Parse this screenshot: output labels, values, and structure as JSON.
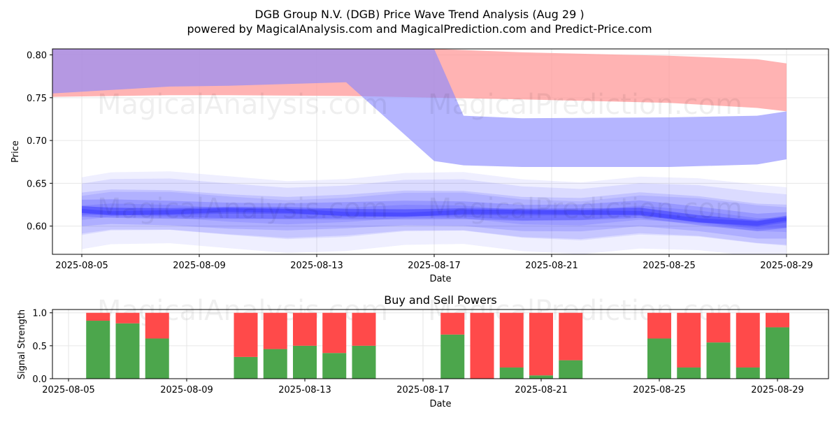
{
  "title_line1": "DGB Group N.V. (DGB) Price Wave Trend Analysis (Aug 29 )",
  "title_line2": "powered by MagicalAnalysis.com and MagicalPrediction.com and Predict-Price.com",
  "watermarks": [
    "MagicalAnalysis.com",
    "MagicalPrediction.com"
  ],
  "colors": {
    "buy": "#4ca64c",
    "sell": "#ff4a4a",
    "upper_band": "#ff9999",
    "lower_band": "#8888ff",
    "wave": "#3333ff",
    "purple_overlap": "#b366a6"
  },
  "chart_data": [
    {
      "type": "area",
      "xlabel": "Date",
      "ylabel": "Price",
      "ylim": [
        0.567,
        0.807
      ],
      "x_tick_labels": [
        "2025-08-05",
        "2025-08-09",
        "2025-08-13",
        "2025-08-17",
        "2025-08-21",
        "2025-08-25",
        "2025-08-29"
      ],
      "y_tick_labels": [
        "0.60",
        "0.65",
        "0.70",
        "0.75",
        "0.80"
      ],
      "grid": true,
      "series": [
        {
          "band": "upper",
          "x": [
            "2025-08-04",
            "2025-08-08",
            "2025-08-10",
            "2025-08-14",
            "2025-08-17",
            "2025-08-20",
            "2025-08-25",
            "2025-08-28",
            "2025-08-29"
          ],
          "upper": [
            0.807,
            0.807,
            0.807,
            0.807,
            0.807,
            0.803,
            0.799,
            0.795,
            0.79
          ],
          "lower": [
            0.751,
            0.753,
            0.753,
            0.752,
            0.75,
            0.748,
            0.744,
            0.738,
            0.734
          ]
        },
        {
          "band": "lower",
          "x": [
            "2025-08-04",
            "2025-08-08",
            "2025-08-10",
            "2025-08-14",
            "2025-08-17",
            "2025-08-18",
            "2025-08-20",
            "2025-08-25",
            "2025-08-28",
            "2025-08-29"
          ],
          "upper": [
            0.807,
            0.807,
            0.807,
            0.807,
            0.807,
            0.729,
            0.726,
            0.727,
            0.729,
            0.734
          ],
          "lower": [
            0.755,
            0.763,
            0.764,
            0.768,
            0.676,
            0.671,
            0.669,
            0.669,
            0.672,
            0.678
          ]
        },
        {
          "band": "wave_center",
          "x": [
            "2025-08-05",
            "2025-08-06",
            "2025-08-08",
            "2025-08-10",
            "2025-08-12",
            "2025-08-14",
            "2025-08-16",
            "2025-08-18",
            "2025-08-20",
            "2025-08-22",
            "2025-08-24",
            "2025-08-26",
            "2025-08-28",
            "2025-08-29"
          ],
          "values": [
            0.615,
            0.617,
            0.62,
            0.619,
            0.614,
            0.612,
            0.616,
            0.62,
            0.616,
            0.612,
            0.614,
            0.61,
            0.606,
            0.607
          ]
        }
      ]
    },
    {
      "type": "bar",
      "title": "Buy and Sell Powers",
      "xlabel": "Date",
      "ylabel": "Signal Strength",
      "ylim": [
        0,
        1.05
      ],
      "x_tick_labels": [
        "2025-08-05",
        "2025-08-09",
        "2025-08-13",
        "2025-08-17",
        "2025-08-21",
        "2025-08-25",
        "2025-08-29"
      ],
      "y_tick_labels": [
        "0.0",
        "0.5",
        "1.0"
      ],
      "categories": [
        "2025-08-06",
        "2025-08-07",
        "2025-08-08",
        "2025-08-11",
        "2025-08-12",
        "2025-08-13",
        "2025-08-14",
        "2025-08-15",
        "2025-08-18",
        "2025-08-19",
        "2025-08-20",
        "2025-08-21",
        "2025-08-22",
        "2025-08-25",
        "2025-08-26",
        "2025-08-27",
        "2025-08-28",
        "2025-08-29"
      ],
      "series": [
        {
          "values": [
            0.88,
            0.84,
            0.61,
            0.33,
            0.45,
            0.5,
            0.39,
            0.5,
            0.67,
            0.0,
            0.17,
            0.05,
            0.28,
            0.61,
            0.17,
            0.55,
            0.17,
            0.78
          ]
        },
        {
          "values": [
            0.12,
            0.16,
            0.39,
            0.67,
            0.55,
            0.5,
            0.61,
            0.5,
            0.33,
            1.0,
            0.83,
            0.95,
            0.72,
            0.39,
            0.83,
            0.45,
            0.83,
            0.22
          ]
        }
      ]
    }
  ]
}
